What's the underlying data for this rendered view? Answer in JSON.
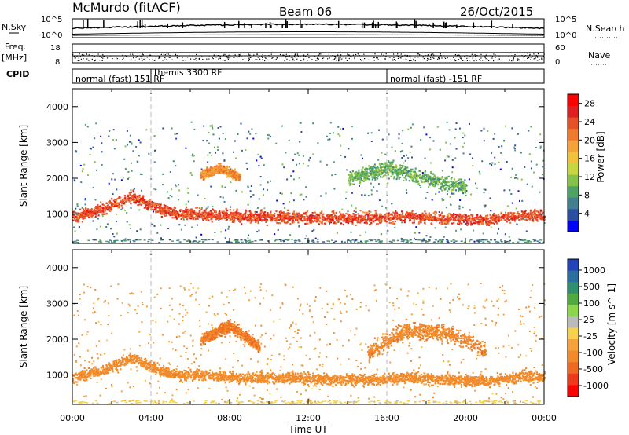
{
  "header": {
    "station": "McMurdo (fitACF)",
    "beam": "Beam 06",
    "date": "26/Oct/2015"
  },
  "strips": {
    "nsky_label": "N.Sky",
    "nsearch_label": "N.Search",
    "freq_label": "Freq.",
    "freq_unit": "[MHz]",
    "nave_label": "Nave",
    "cpid_label": "CPID",
    "nsky_ticks": [
      "10^5",
      "10^0"
    ],
    "nsearch_ticks": [
      "10^5",
      "10^0"
    ],
    "freq_ticks": [
      "18",
      "8"
    ],
    "nave_ticks": [
      "60",
      "0"
    ],
    "cpid_segments": [
      {
        "label": "normal (fast) 151 RF",
        "start": 0.0
      },
      {
        "label": "themis 3300 RF",
        "start": 4.0
      },
      {
        "label": "normal (fast) -151 RF",
        "start": 16.0
      }
    ]
  },
  "chart_data": [
    {
      "type": "heatmap",
      "title": "",
      "xlabel": "Time UT",
      "ylabel": "Slant Range [km]",
      "xlim": [
        0,
        24
      ],
      "ylim": [
        180,
        4500
      ],
      "x_ticks": [
        "00:00",
        "04:00",
        "08:00",
        "12:00",
        "16:00",
        "20:00",
        "00:00"
      ],
      "y_ticks": [
        1000,
        2000,
        3000,
        4000
      ],
      "colorbar": {
        "label": "Power [dB]",
        "ticks": [
          4,
          8,
          12,
          16,
          20,
          24,
          28
        ],
        "range": [
          0,
          30
        ]
      },
      "scatter_bands": [
        {
          "t": [
            0,
            1.5,
            3,
            4,
            5,
            7,
            9,
            11,
            13,
            15,
            17,
            19,
            21,
            23,
            24
          ],
          "range_km": [
            950,
            1150,
            1500,
            1250,
            1050,
            1000,
            950,
            950,
            900,
            900,
            950,
            900,
            850,
            1000,
            950
          ],
          "half_width_km": 200,
          "level_db": 24
        },
        {
          "t": [
            6.5,
            7.5,
            8.5
          ],
          "range_km": [
            2100,
            2300,
            2050
          ],
          "half_width_km": 150,
          "level_db": 20
        },
        {
          "t": [
            14,
            16,
            18,
            20
          ],
          "range_km": [
            2000,
            2300,
            2000,
            1750
          ],
          "half_width_km": 250,
          "level_db": 10
        }
      ]
    },
    {
      "type": "heatmap",
      "title": "",
      "xlabel": "Time UT",
      "ylabel": "Slant Range [km]",
      "xlim": [
        0,
        24
      ],
      "ylim": [
        180,
        4500
      ],
      "x_ticks": [
        "00:00",
        "04:00",
        "08:00",
        "12:00",
        "16:00",
        "20:00",
        "00:00"
      ],
      "y_ticks": [
        1000,
        2000,
        3000,
        4000
      ],
      "colorbar": {
        "label": "Velocity [m s^-1]",
        "ticks": [
          1000,
          500,
          100,
          25,
          -25,
          -100,
          -500,
          -1000
        ]
      },
      "scatter_bands": [
        {
          "t": [
            0,
            1.5,
            3,
            4,
            5,
            7,
            9,
            11,
            13,
            15,
            17,
            19,
            21,
            23,
            24
          ],
          "range_km": [
            950,
            1150,
            1500,
            1250,
            1050,
            1000,
            950,
            950,
            900,
            900,
            950,
            900,
            850,
            1000,
            950
          ],
          "half_width_km": 200,
          "level_ms": -150
        },
        {
          "t": [
            6.5,
            8,
            9.5
          ],
          "range_km": [
            2000,
            2400,
            1800
          ],
          "half_width_km": 200,
          "level_ms": -250
        },
        {
          "t": [
            15,
            17,
            19,
            21
          ],
          "range_km": [
            1600,
            2300,
            2200,
            1700
          ],
          "half_width_km": 300,
          "level_ms": -200
        }
      ]
    }
  ]
}
